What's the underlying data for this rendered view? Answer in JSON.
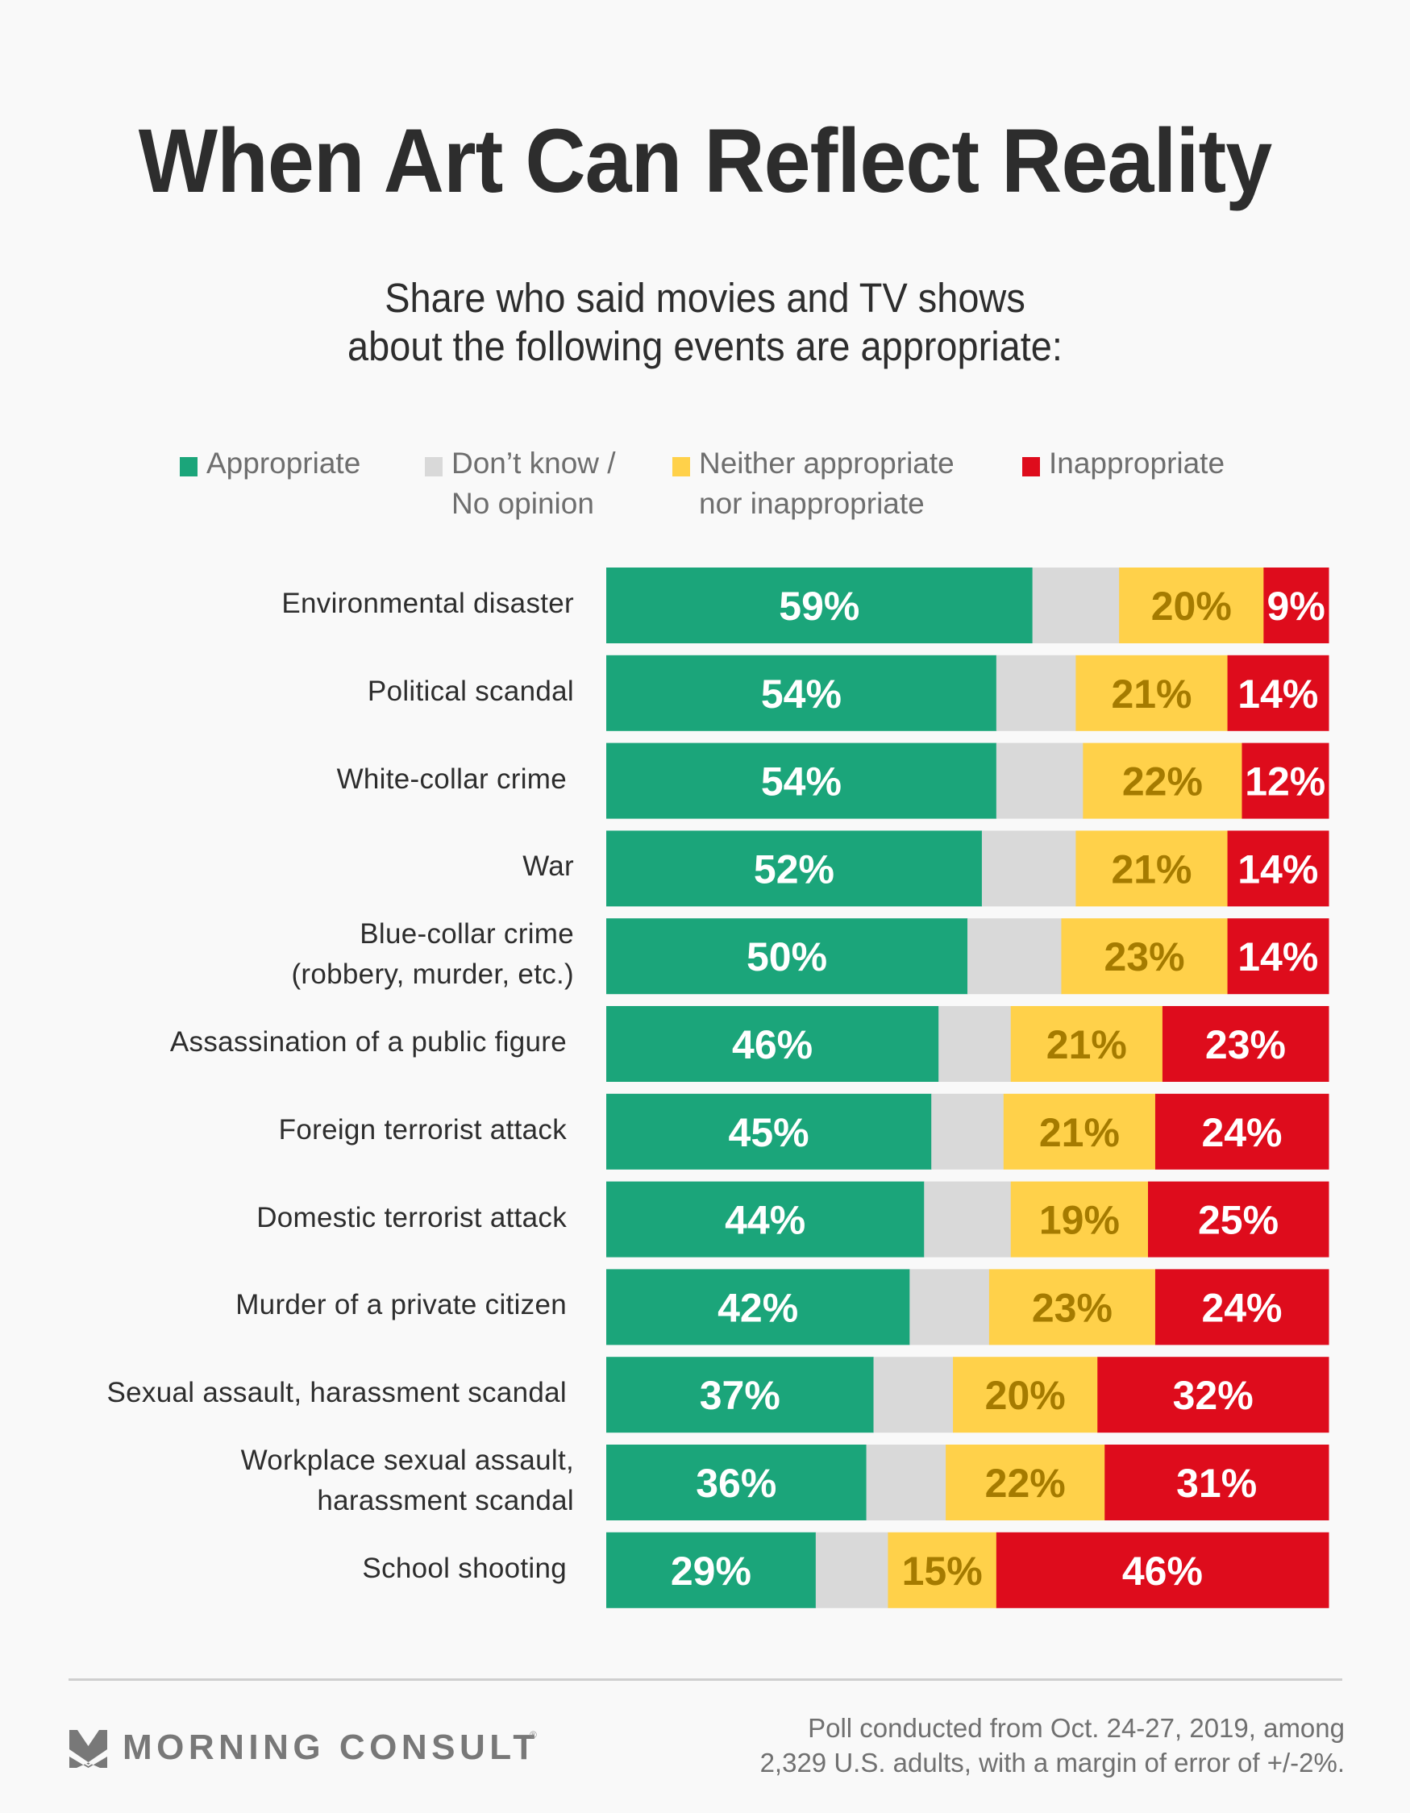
{
  "header": {
    "title": "When Art Can Reflect Reality",
    "subtitle_lines": [
      "Share who said movies and TV shows",
      "about the following events are appropriate:"
    ]
  },
  "legend": [
    {
      "key": "appropriate",
      "lines": [
        "Appropriate"
      ],
      "color": "#1ba57a"
    },
    {
      "key": "dont_know",
      "lines": [
        "Don’t know /",
        "No opinion"
      ],
      "color": "#d9d9d9"
    },
    {
      "key": "neither",
      "lines": [
        "Neither appropriate",
        "nor inappropriate"
      ],
      "color": "#ffd14a"
    },
    {
      "key": "inappropriate",
      "lines": [
        "Inappropriate"
      ],
      "color": "#de0c1c"
    }
  ],
  "chart_data": {
    "type": "bar",
    "orientation": "horizontal",
    "stacked": true,
    "normalized_to": 100,
    "title": "When Art Can Reflect Reality",
    "subtitle": "Share who said movies and TV shows about the following events are appropriate:",
    "xlabel": "",
    "ylabel": "",
    "xlim": [
      0,
      100
    ],
    "grid": false,
    "legend_position": "top",
    "categories": [
      [
        "Environmental disaster"
      ],
      [
        "Political scandal"
      ],
      [
        "White-collar crime"
      ],
      [
        "War"
      ],
      [
        "Blue-collar crime",
        "(robbery, murder, etc.)"
      ],
      [
        "Assassination of a public figure"
      ],
      [
        "Foreign terrorist attack"
      ],
      [
        "Domestic terrorist attack"
      ],
      [
        "Murder of a private citizen"
      ],
      [
        "Sexual assault, harassment scandal"
      ],
      [
        "Workplace sexual assault,",
        "harassment scandal"
      ],
      [
        "School shooting"
      ]
    ],
    "series": [
      {
        "name": "Appropriate",
        "key": "appropriate",
        "color": "#1ba57a",
        "label_color": "#ffffff",
        "show_labels": true,
        "values": [
          59,
          54,
          54,
          52,
          50,
          46,
          45,
          44,
          42,
          37,
          36,
          29
        ]
      },
      {
        "name": "Don't know / No opinion",
        "key": "dont_know",
        "color": "#d9d9d9",
        "label_color": "#ffffff",
        "show_labels": false,
        "values": [
          12,
          11,
          12,
          13,
          13,
          10,
          10,
          12,
          11,
          11,
          11,
          10
        ]
      },
      {
        "name": "Neither appropriate nor inappropriate",
        "key": "neither",
        "color": "#ffd14a",
        "label_color": "#a57b00",
        "show_labels": true,
        "values": [
          20,
          21,
          22,
          21,
          23,
          21,
          21,
          19,
          23,
          20,
          22,
          15
        ]
      },
      {
        "name": "Inappropriate",
        "key": "inappropriate",
        "color": "#de0c1c",
        "label_color": "#ffffff",
        "show_labels": true,
        "values": [
          9,
          14,
          12,
          14,
          14,
          23,
          24,
          25,
          24,
          32,
          31,
          46
        ]
      }
    ]
  },
  "footer": {
    "brand": "MORNING CONSULT",
    "brand_mark": "®",
    "note_lines": [
      "Poll conducted from Oct. 24-27, 2019, among",
      "2,329 U.S. adults, with a margin of error of +/-2%."
    ]
  }
}
